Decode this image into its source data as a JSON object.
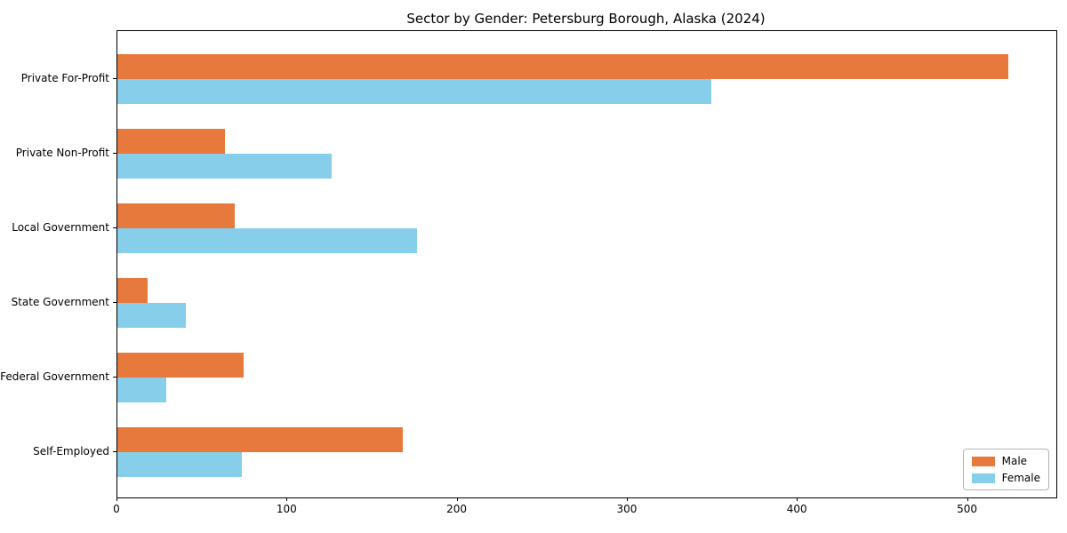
{
  "chart_data": {
    "type": "bar",
    "orientation": "horizontal",
    "title": "Sector by Gender: Petersburg Borough, Alaska (2024)",
    "categories": [
      "Private For-Profit",
      "Private Non-Profit",
      "Local Government",
      "State Government",
      "Federal Government",
      "Self-Employed"
    ],
    "series": [
      {
        "name": "Male",
        "color": "#e8793c",
        "values": [
          524,
          63,
          69,
          18,
          74,
          168
        ]
      },
      {
        "name": "Female",
        "color": "#87ceeb",
        "values": [
          349,
          126,
          176,
          40,
          29,
          73
        ]
      }
    ],
    "xlabel": "",
    "ylabel": "",
    "xlim": [
      0,
      552
    ],
    "x_ticks": [
      0,
      100,
      200,
      300,
      400,
      500
    ],
    "grid": false,
    "legend_position": "lower right"
  }
}
